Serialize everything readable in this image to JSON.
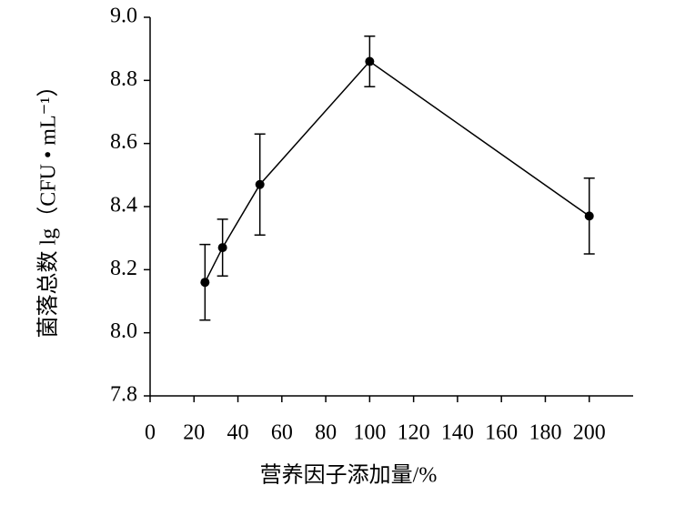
{
  "chart_data": {
    "type": "line",
    "x_label": "营养因子添加量/%",
    "y_label": "菌落总数 lg（CFU • mL⁻¹）",
    "x": [
      25,
      33,
      50,
      100,
      200
    ],
    "series": [
      {
        "color": "#000000",
        "values": [
          8.16,
          8.27,
          8.47,
          8.86,
          8.37
        ],
        "errors": [
          0.12,
          0.09,
          0.16,
          0.08,
          0.12
        ]
      }
    ],
    "xlim": [
      0,
      220
    ],
    "xticks": [
      0,
      20,
      40,
      60,
      80,
      100,
      120,
      140,
      160,
      180,
      200
    ],
    "ylim": [
      7.8,
      9.0
    ],
    "yticks": [
      7.8,
      {
        "value": 8,
        "label": "8.0"
      },
      8.2,
      8.4,
      8.6,
      8.8,
      {
        "value": 9,
        "label": "9.0"
      }
    ],
    "grid": false
  }
}
